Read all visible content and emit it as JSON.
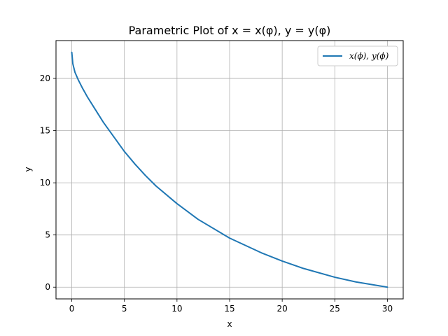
{
  "chart_data": {
    "type": "line",
    "title": "Parametric Plot of x = x(φ), y = y(φ)",
    "xlabel": "x",
    "ylabel": "y",
    "xlim": [
      -1.5,
      31.5
    ],
    "ylim": [
      -1.125,
      23.625
    ],
    "xticks": [
      0,
      5,
      10,
      15,
      20,
      25,
      30
    ],
    "yticks": [
      0,
      5,
      10,
      15,
      20
    ],
    "grid": true,
    "legend_position": "top-right",
    "series": [
      {
        "name": "x(ϕ), y(ϕ)",
        "color": "#1f77b4",
        "x": [
          0.0,
          0.1,
          0.3,
          0.6,
          1.0,
          1.5,
          2.0,
          3.0,
          4.0,
          5.0,
          6.0,
          7.0,
          8.0,
          10.0,
          12.0,
          15.0,
          18.0,
          20.0,
          22.0,
          25.0,
          27.0,
          30.0
        ],
        "y": [
          22.5,
          21.4,
          20.6,
          19.9,
          19.1,
          18.2,
          17.4,
          15.8,
          14.4,
          13.0,
          11.8,
          10.7,
          9.7,
          8.0,
          6.5,
          4.7,
          3.3,
          2.5,
          1.8,
          0.95,
          0.5,
          0.0
        ]
      }
    ]
  }
}
